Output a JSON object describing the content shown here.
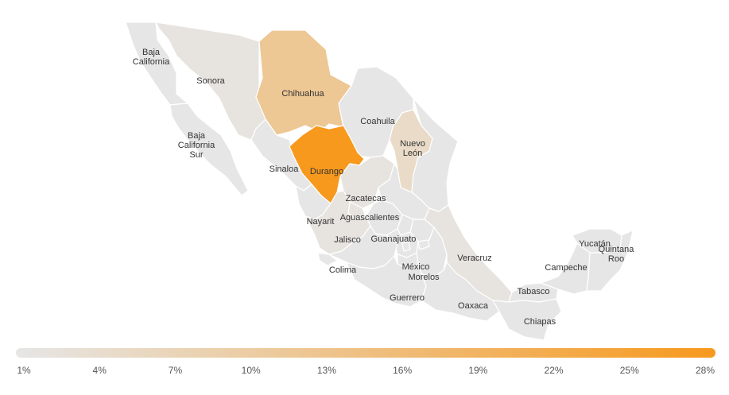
{
  "map": {
    "low_color": "#e6e6e6",
    "high_color": "#f7991d",
    "min_value": 1,
    "max_value": 28,
    "states": [
      {
        "id": "baja-california",
        "lines": [
          "Baja",
          "California"
        ],
        "value": 1
      },
      {
        "id": "baja-california-sur",
        "lines": [
          "Baja",
          "California",
          "Sur"
        ],
        "value": 1
      },
      {
        "id": "sonora",
        "lines": [
          "Sonora"
        ],
        "value": 2
      },
      {
        "id": "chihuahua",
        "lines": [
          "Chihuahua"
        ],
        "value": 12
      },
      {
        "id": "coahuila",
        "lines": [
          "Coahuila"
        ],
        "value": 1
      },
      {
        "id": "nuevo-leon",
        "lines": [
          "Nuevo",
          "León"
        ],
        "value": 5
      },
      {
        "id": "sinaloa",
        "lines": [
          "Sinaloa"
        ],
        "value": 1
      },
      {
        "id": "durango",
        "lines": [
          "Durango"
        ],
        "value": 28
      },
      {
        "id": "zacatecas",
        "lines": [
          "Zacatecas"
        ],
        "value": 2
      },
      {
        "id": "nayarit",
        "lines": [
          "Nayarit"
        ],
        "value": 1
      },
      {
        "id": "aguascalientes",
        "lines": [
          "Aguascalientes"
        ],
        "value": 2
      },
      {
        "id": "jalisco",
        "lines": [
          "Jalisco"
        ],
        "value": 2
      },
      {
        "id": "guanajuato",
        "lines": [
          "Guanajuato"
        ],
        "value": 1
      },
      {
        "id": "colima",
        "lines": [
          "Colima"
        ],
        "value": 1
      },
      {
        "id": "mexico",
        "lines": [
          "México"
        ],
        "value": 1
      },
      {
        "id": "morelos",
        "lines": [
          "Morelos"
        ],
        "value": 1
      },
      {
        "id": "guerrero",
        "lines": [
          "Guerrero"
        ],
        "value": 1
      },
      {
        "id": "veracruz",
        "lines": [
          "Veracruz"
        ],
        "value": 2
      },
      {
        "id": "oaxaca",
        "lines": [
          "Oaxaca"
        ],
        "value": 1
      },
      {
        "id": "tabasco",
        "lines": [
          "Tabasco"
        ],
        "value": 1
      },
      {
        "id": "chiapas",
        "lines": [
          "Chiapas"
        ],
        "value": 1
      },
      {
        "id": "campeche",
        "lines": [
          "Campeche"
        ],
        "value": 1
      },
      {
        "id": "yucatan",
        "lines": [
          "Yucatán"
        ],
        "value": 1
      },
      {
        "id": "quintana-roo",
        "lines": [
          "Quintana",
          "Roo"
        ],
        "value": 1
      },
      {
        "id": "tamaulipas",
        "lines": [],
        "value": 1
      },
      {
        "id": "san-luis-potosi",
        "lines": [],
        "value": 1
      },
      {
        "id": "queretaro",
        "lines": [],
        "value": 1
      },
      {
        "id": "hidalgo",
        "lines": [],
        "value": 1
      },
      {
        "id": "michoacan",
        "lines": [],
        "value": 1
      },
      {
        "id": "puebla",
        "lines": [],
        "value": 1
      },
      {
        "id": "tlaxcala",
        "lines": [],
        "value": 1
      },
      {
        "id": "ciudad-de-mexico",
        "lines": [],
        "value": 1
      }
    ]
  },
  "legend": {
    "ticks": [
      "1%",
      "4%",
      "7%",
      "10%",
      "13%",
      "16%",
      "19%",
      "22%",
      "25%",
      "28%"
    ]
  }
}
